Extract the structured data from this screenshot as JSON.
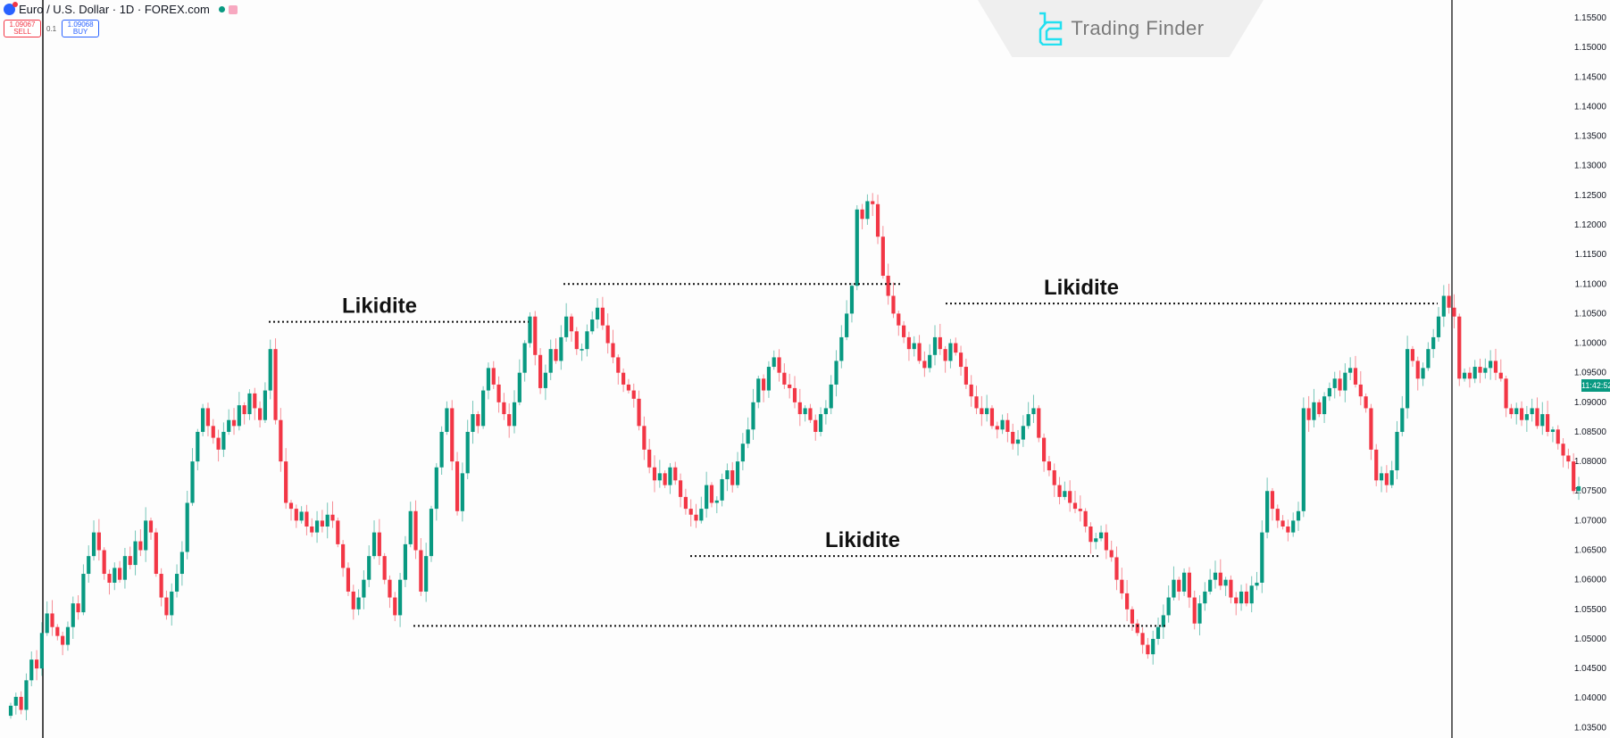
{
  "header": {
    "symbol_title": "Euro / U.S. Dollar · 1D · FOREX.com",
    "sell_price": "1.09067",
    "sell_label": "SELL",
    "spread": "0.1",
    "buy_price": "1.09068",
    "buy_label": "BUY"
  },
  "branding": {
    "logo_text": "Trading Finder",
    "logo_color": "#22e0f0"
  },
  "current_price_badge": "11:42:52",
  "colors": {
    "up": "#089981",
    "down": "#f23645",
    "annotation": "#111111",
    "background": "#fdfdfd"
  },
  "chart_data": {
    "type": "candlestick",
    "symbol": "EURUSD",
    "timeframe": "1D",
    "ylim": [
      1.033,
      1.158
    ],
    "y_ticks": [
      "1.15500",
      "1.15000",
      "1.14500",
      "1.14000",
      "1.13500",
      "1.13000",
      "1.12500",
      "1.12000",
      "1.11500",
      "1.11000",
      "1.10500",
      "1.10000",
      "1.09500",
      "1.09000",
      "1.08500",
      "1.08000",
      "1.07500",
      "1.07000",
      "1.06500",
      "1.06000",
      "1.05500",
      "1.05000",
      "1.04500",
      "1.04000",
      "1.03500"
    ],
    "grid": false,
    "first_open": 1.037,
    "closes": [
      1.0387,
      1.0402,
      1.038,
      1.043,
      1.0465,
      1.045,
      1.051,
      1.0543,
      1.052,
      1.0505,
      1.049,
      1.052,
      1.056,
      1.0545,
      1.061,
      1.064,
      1.068,
      1.065,
      1.061,
      1.0595,
      1.062,
      1.06,
      1.064,
      1.0625,
      1.0665,
      1.065,
      1.07,
      1.068,
      1.061,
      1.057,
      1.054,
      1.058,
      1.061,
      1.0647,
      1.073,
      1.08,
      1.085,
      1.089,
      1.086,
      1.084,
      1.082,
      1.085,
      1.087,
      1.086,
      1.0895,
      1.088,
      1.0915,
      1.089,
      1.087,
      1.092,
      1.099,
      1.087,
      1.08,
      1.073,
      1.072,
      1.07,
      1.0715,
      1.069,
      1.068,
      1.07,
      1.069,
      1.071,
      1.07,
      1.066,
      1.062,
      1.058,
      1.055,
      1.057,
      1.06,
      1.064,
      1.068,
      1.064,
      1.06,
      1.057,
      1.054,
      1.06,
      1.066,
      1.0716,
      1.065,
      1.058,
      1.064,
      1.072,
      1.079,
      1.085,
      1.089,
      1.08,
      1.0716,
      1.078,
      1.085,
      1.088,
      1.086,
      1.092,
      1.0958,
      1.093,
      1.09,
      1.088,
      1.086,
      1.09,
      1.095,
      1.1,
      1.1045,
      1.098,
      1.0924,
      1.095,
      1.099,
      1.097,
      1.101,
      1.1045,
      1.102,
      1.099,
      1.099,
      1.102,
      1.104,
      1.106,
      1.103,
      1.1,
      1.0976,
      1.095,
      1.093,
      1.092,
      1.0906,
      1.086,
      1.082,
      1.079,
      1.0768,
      1.078,
      1.076,
      1.079,
      1.0768,
      1.074,
      1.072,
      1.071,
      1.07,
      1.072,
      1.076,
      1.073,
      1.0734,
      1.077,
      1.0785,
      1.076,
      1.08,
      1.083,
      1.0854,
      1.09,
      1.094,
      1.092,
      1.096,
      1.0976,
      1.095,
      1.093,
      1.0924,
      1.09,
      1.088,
      1.089,
      1.087,
      1.085,
      1.088,
      1.089,
      1.093,
      1.097,
      1.101,
      1.105,
      1.1097,
      1.1226,
      1.121,
      1.124,
      1.1235,
      1.118,
      1.1114,
      1.108,
      1.105,
      1.103,
      1.101,
      1.099,
      1.1,
      1.097,
      1.0958,
      1.098,
      1.101,
      1.099,
      1.097,
      1.1,
      1.0984,
      1.096,
      1.093,
      1.091,
      1.089,
      1.088,
      1.089,
      1.086,
      1.0854,
      1.087,
      1.085,
      1.083,
      1.0837,
      1.086,
      1.088,
      1.089,
      1.084,
      1.08,
      1.0785,
      1.076,
      1.074,
      1.075,
      1.073,
      1.072,
      1.0716,
      1.069,
      1.0664,
      1.067,
      1.068,
      1.065,
      1.0638,
      1.06,
      1.0577,
      1.055,
      1.0526,
      1.051,
      1.049,
      1.0474,
      1.05,
      1.052,
      1.054,
      1.057,
      1.06,
      1.058,
      1.0612,
      1.057,
      1.0526,
      1.056,
      1.058,
      1.06,
      1.0612,
      1.059,
      1.06,
      1.057,
      1.056,
      1.058,
      1.056,
      1.059,
      1.0595,
      1.068,
      1.075,
      1.072,
      1.07,
      1.069,
      1.068,
      1.07,
      1.0716,
      1.089,
      1.087,
      1.09,
      1.088,
      1.091,
      1.0924,
      1.094,
      1.092,
      1.095,
      1.0958,
      1.093,
      1.091,
      1.089,
      1.082,
      1.0768,
      1.078,
      1.076,
      1.0785,
      1.085,
      1.089,
      1.099,
      1.097,
      1.094,
      1.0958,
      1.099,
      1.101,
      1.1045,
      1.108,
      1.106,
      1.1045,
      1.094,
      1.095,
      1.094,
      1.096,
      1.095,
      1.0958,
      1.097,
      1.095,
      1.094,
      1.089,
      1.088,
      1.089,
      1.087,
      1.088,
      1.089,
      1.086,
      1.088,
      1.085,
      1.0854,
      1.083,
      1.081,
      1.08,
      1.075,
      1.0758
    ],
    "annotations": [
      {
        "label": "Likidite",
        "price": 1.1036
      },
      {
        "label": "",
        "price": 1.11
      },
      {
        "label": "Likidite",
        "price": 1.1067
      },
      {
        "label": "Likidite",
        "price": 1.064
      },
      {
        "label": "",
        "price": 1.0522
      }
    ]
  }
}
